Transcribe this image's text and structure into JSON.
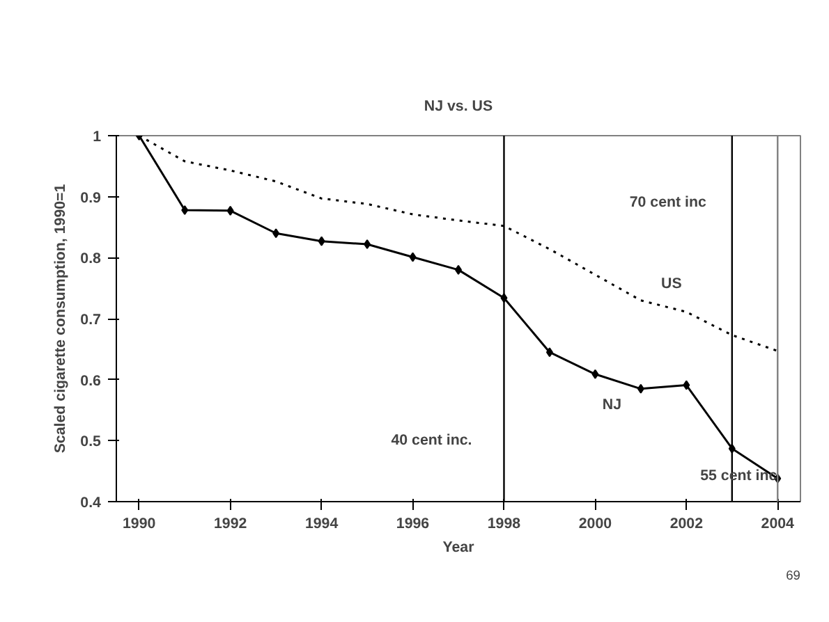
{
  "chart_data": {
    "type": "line",
    "title": "NJ vs. US",
    "xlabel": "Year",
    "ylabel": "Scaled cigarette consumption, 1990=1",
    "x": [
      1990,
      1991,
      1992,
      1993,
      1994,
      1995,
      1996,
      1997,
      1998,
      1999,
      2000,
      2001,
      2002,
      2003,
      2004
    ],
    "xlim": [
      1989.5,
      2004.5
    ],
    "xticks": [
      1990,
      1992,
      1994,
      1996,
      1998,
      2000,
      2002,
      2004
    ],
    "ylim": [
      0.4,
      1
    ],
    "yticks": [
      0.4,
      0.5,
      0.6,
      0.7,
      0.8,
      0.9,
      1
    ],
    "grid": false,
    "legend": false,
    "series": [
      {
        "name": "US",
        "color": "#000000",
        "line_style": "dotted",
        "marker": "none",
        "values": [
          1.0,
          0.958,
          0.943,
          0.925,
          0.897,
          0.888,
          0.871,
          0.861,
          0.852,
          0.814,
          0.772,
          0.73,
          0.711,
          0.673,
          0.647
        ]
      },
      {
        "name": "NJ",
        "color": "#000000",
        "line_style": "solid",
        "marker": "diamond",
        "values": [
          1.0,
          0.878,
          0.877,
          0.84,
          0.827,
          0.822,
          0.801,
          0.78,
          0.734,
          0.645,
          0.609,
          0.585,
          0.591,
          0.487,
          0.438
        ]
      }
    ],
    "ref_lines": [
      {
        "axis": "x",
        "value": 1998,
        "color": "#000000",
        "label": "40 cent inc."
      },
      {
        "axis": "x",
        "value": 2003,
        "color": "#000000",
        "label": "70 cent inc"
      },
      {
        "axis": "x",
        "value": 2004,
        "color": "#808080",
        "label": "55 cent inc"
      }
    ],
    "annotations": [
      "69"
    ]
  }
}
